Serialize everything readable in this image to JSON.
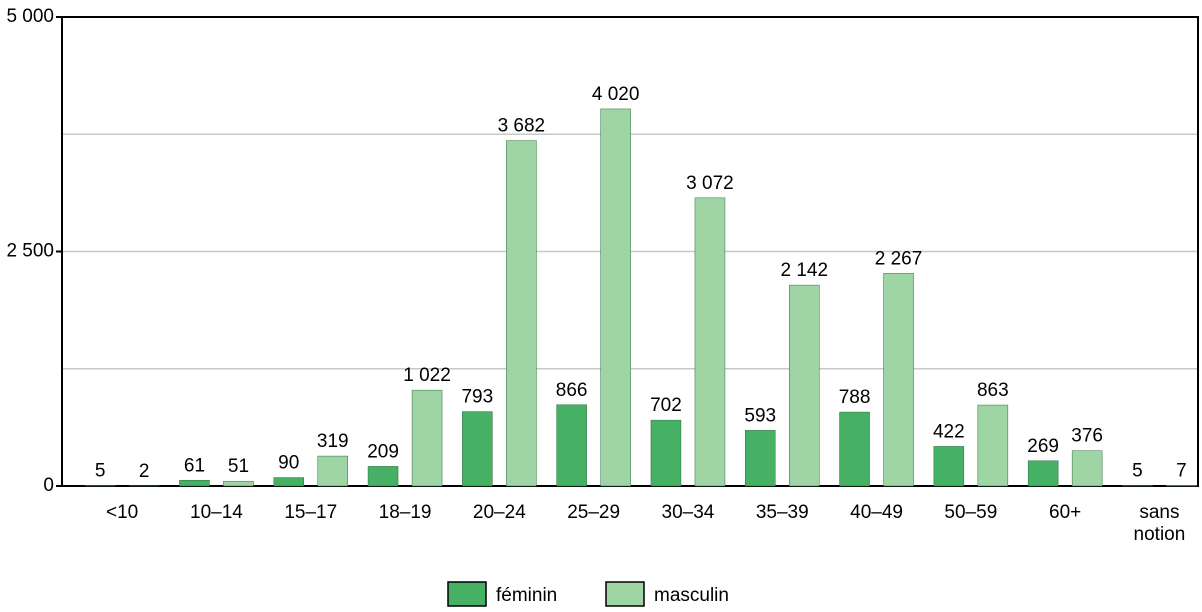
{
  "chart_data": {
    "type": "bar",
    "categories": [
      "<10",
      "10–14",
      "15–17",
      "18–19",
      "20–24",
      "25–29",
      "30–34",
      "35–39",
      "40–49",
      "50–59",
      "60+",
      "sans notion"
    ],
    "series": [
      {
        "name": "féminin",
        "color": "#46b064",
        "values": [
          5,
          61,
          90,
          209,
          793,
          866,
          702,
          593,
          788,
          422,
          269,
          5
        ],
        "value_labels": [
          "5",
          "61",
          "90",
          "209",
          "793",
          "866",
          "702",
          "593",
          "788",
          "422",
          "269",
          "5"
        ]
      },
      {
        "name": "masculin",
        "color": "#9fd4a5",
        "values": [
          2,
          51,
          319,
          1022,
          3682,
          4020,
          3072,
          2142,
          2267,
          863,
          376,
          7
        ],
        "value_labels": [
          "2",
          "51",
          "319",
          "1 022",
          "3 682",
          "4 020",
          "3 072",
          "2 142",
          "2 267",
          "863",
          "376",
          "7"
        ]
      }
    ],
    "ylim": [
      0,
      5000
    ],
    "yticks": [
      0,
      {
        "value": 2500,
        "label": "2 500"
      },
      {
        "value": 5000,
        "label": "5 000"
      }
    ],
    "minor_yticks": [
      1250,
      3750
    ],
    "grid": true
  }
}
